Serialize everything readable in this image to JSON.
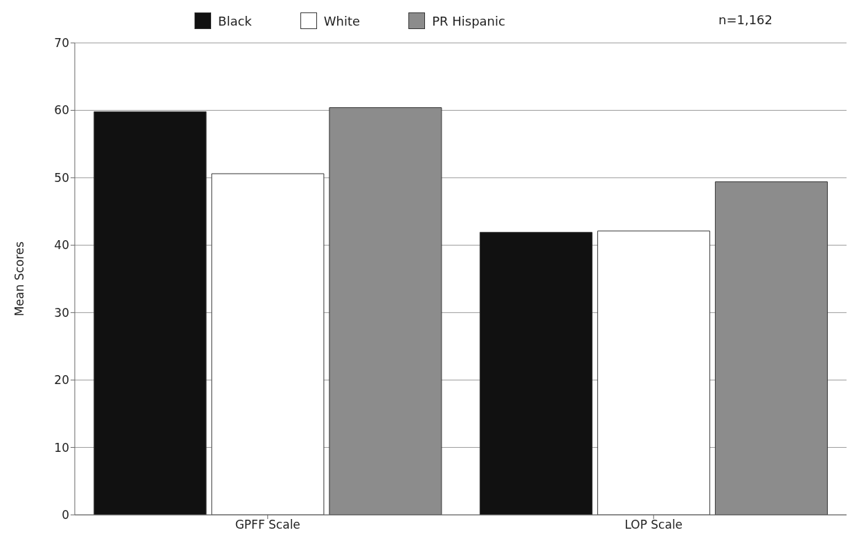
{
  "chart_data": {
    "type": "bar",
    "ylabel": "Mean Scores",
    "categories": [
      "GPFF Scale",
      "LOP Scale"
    ],
    "series": [
      {
        "name": "Black",
        "color": "#111111",
        "values": [
          59.8,
          41.9
        ]
      },
      {
        "name": "White",
        "color": "#ffffff",
        "values": [
          50.6,
          42.1
        ]
      },
      {
        "name": "PR Hispanic",
        "color": "#8c8c8c",
        "values": [
          60.4,
          49.4
        ]
      }
    ],
    "ylim": [
      0,
      70
    ],
    "yticks": [
      0,
      10,
      20,
      30,
      40,
      50,
      60,
      70
    ],
    "grid": "y",
    "legend": "top",
    "annotations": [
      "n=1,162"
    ]
  }
}
